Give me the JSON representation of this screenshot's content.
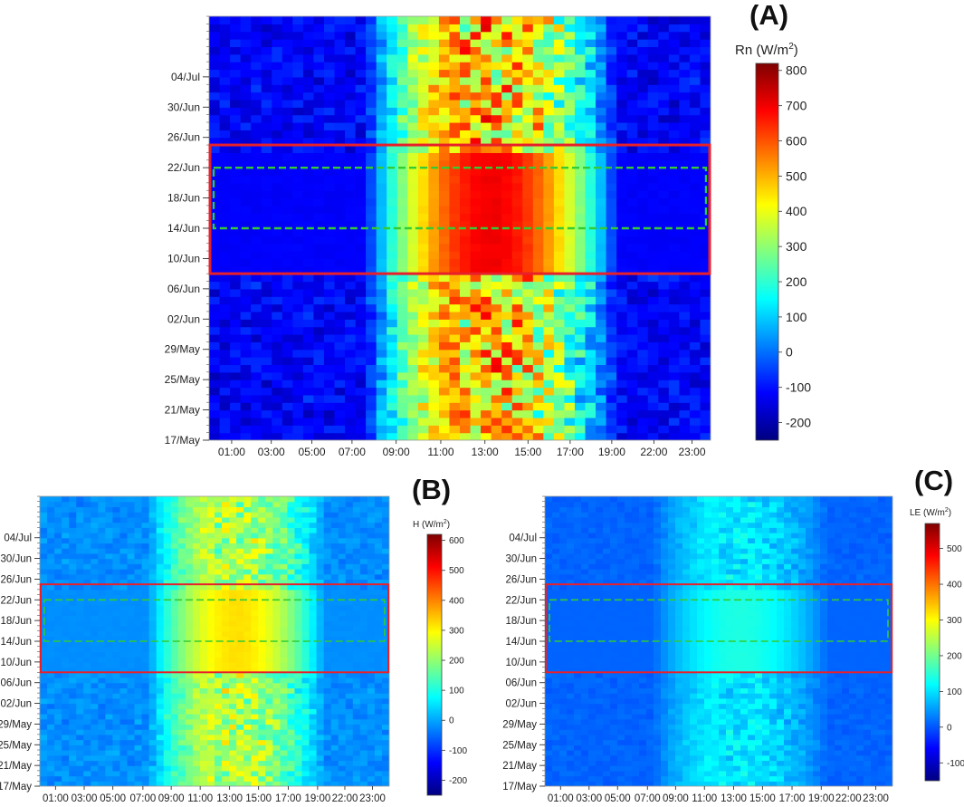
{
  "figure": {
    "panels": [
      {
        "letter": "(A)",
        "variable": "Rn",
        "unit_base": "W/m",
        "unit_exp": "2"
      },
      {
        "letter": "(B)",
        "variable": "H",
        "unit_base": "W/m",
        "unit_exp": "2"
      },
      {
        "letter": "(C)",
        "variable": "LE",
        "unit_base": "W/m",
        "unit_exp": "2"
      }
    ],
    "colormap": [
      "#00007f",
      "#0000ff",
      "#0080ff",
      "#00ffff",
      "#80ff80",
      "#ffff00",
      "#ff8000",
      "#ff0000",
      "#7f0000"
    ],
    "box_colors": {
      "solid": "#e8202a",
      "dashed": "#33cc33"
    }
  },
  "chart_data": [
    {
      "type": "heatmap",
      "panel": "(A)",
      "colorbar_title": "Rn (W/m2)",
      "x_tick_labels": [
        "01:00",
        "03:00",
        "05:00",
        "07:00",
        "09:00",
        "11:00",
        "13:00",
        "15:00",
        "17:00",
        "19:00",
        "22:00",
        "23:00"
      ],
      "y_tick_labels": [
        "17/May",
        "21/May",
        "25/May",
        "29/May",
        "02/Jun",
        "06/Jun",
        "10/Jun",
        "14/Jun",
        "18/Jun",
        "22/Jun",
        "26/Jun",
        "30/Jun",
        "04/Jul"
      ],
      "colorbar_range": [
        -250,
        820
      ],
      "colorbar_ticks": [
        -200,
        -100,
        0,
        100,
        200,
        300,
        400,
        500,
        600,
        700,
        800
      ],
      "solid_box": {
        "from": "07/Jun",
        "to": "24/Jun",
        "hours": [
          0,
          24
        ]
      },
      "dashed_box": {
        "from": "14/Jun",
        "to": "21/Jun",
        "hours": [
          0,
          24
        ]
      },
      "diurnal_profile": {
        "night": -120,
        "peak": 700,
        "peak_hour": 13.5
      }
    },
    {
      "type": "heatmap",
      "panel": "(B)",
      "colorbar_title": "H (W/m2)",
      "x_tick_labels": [
        "01:00",
        "03:00",
        "05:00",
        "07:00",
        "09:00",
        "11:00",
        "13:00",
        "15:00",
        "17:00",
        "19:00",
        "22:00",
        "23:00"
      ],
      "y_tick_labels": [
        "17/May",
        "21/May",
        "25/May",
        "29/May",
        "02/Jun",
        "06/Jun",
        "10/Jun",
        "14/Jun",
        "18/Jun",
        "22/Jun",
        "26/Jun",
        "30/Jun",
        "04/Jul"
      ],
      "colorbar_range": [
        -250,
        620
      ],
      "colorbar_ticks": [
        -200,
        -100,
        0,
        100,
        200,
        300,
        400,
        500,
        600
      ],
      "solid_box": {
        "from": "07/Jun",
        "to": "24/Jun",
        "hours": [
          0,
          24
        ]
      },
      "dashed_box": {
        "from": "14/Jun",
        "to": "21/Jun",
        "hours": [
          0,
          24
        ]
      },
      "diurnal_profile": {
        "night": -20,
        "peak": 320,
        "peak_hour": 13.5
      }
    },
    {
      "type": "heatmap",
      "panel": "(C)",
      "colorbar_title": "LE (W/m2)",
      "x_tick_labels": [
        "01:00",
        "03:00",
        "05:00",
        "07:00",
        "09:00",
        "11:00",
        "13:00",
        "15:00",
        "17:00",
        "19:00",
        "22:00",
        "23:00"
      ],
      "y_tick_labels": [
        "17/May",
        "21/May",
        "25/May",
        "29/May",
        "02/Jun",
        "06/Jun",
        "10/Jun",
        "14/Jun",
        "18/Jun",
        "22/Jun",
        "26/Jun",
        "30/Jun",
        "04/Jul"
      ],
      "colorbar_range": [
        -150,
        570
      ],
      "colorbar_ticks": [
        -100,
        0,
        100,
        200,
        300,
        400,
        500
      ],
      "solid_box": {
        "from": "07/Jun",
        "to": "24/Jun",
        "hours": [
          0,
          24
        ]
      },
      "dashed_box": {
        "from": "14/Jun",
        "to": "21/Jun",
        "hours": [
          0,
          24
        ]
      },
      "diurnal_profile": {
        "night": 10,
        "peak": 140,
        "peak_hour": 14
      }
    }
  ]
}
